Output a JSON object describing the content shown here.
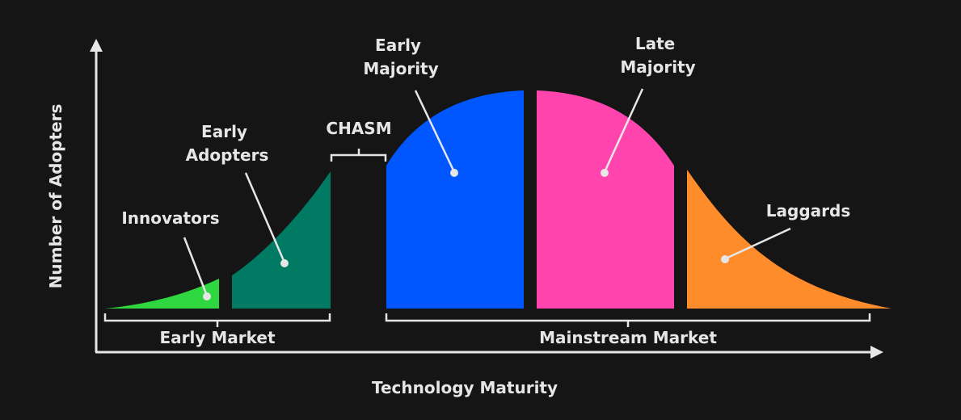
{
  "diagram": {
    "axes": {
      "x_label": "Technology Maturity",
      "y_label": "Number of Adopters"
    },
    "segments": [
      {
        "id": "innovators",
        "label": [
          "Innovators"
        ],
        "color": "#2ed73f"
      },
      {
        "id": "early-adopters",
        "label": [
          "Early",
          "Adopters"
        ],
        "color": "#007a62"
      },
      {
        "id": "early-majority",
        "label": [
          "Early",
          "Majority"
        ],
        "color": "#0057ff"
      },
      {
        "id": "late-majority",
        "label": [
          "Late",
          "Majority"
        ],
        "color": "#ff45ad"
      },
      {
        "id": "laggards",
        "label": [
          "Laggards"
        ],
        "color": "#ff8c2b"
      }
    ],
    "chasm_label": "CHASM",
    "brackets": {
      "early_market": "Early Market",
      "mainstream_market": "Mainstream Market"
    },
    "colors": {
      "background": "#151515",
      "axis": "#e6e6e6",
      "text": "#e6e6e6"
    }
  }
}
